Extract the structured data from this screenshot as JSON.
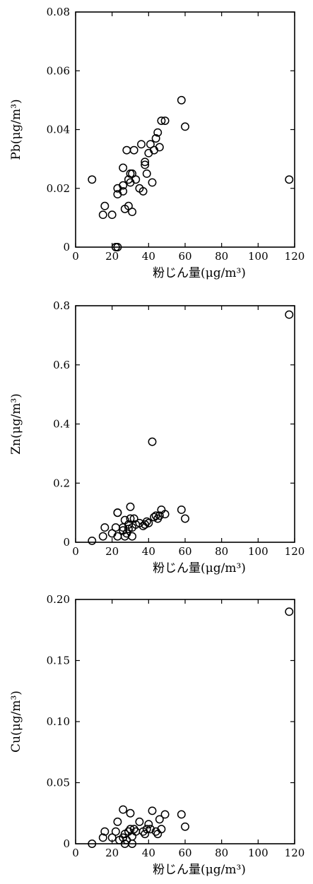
{
  "chart_data": [
    {
      "type": "scatter",
      "xlabel": "粉じん量(μg/m³)",
      "ylabel": "Pb(μg/m³)",
      "xlim": [
        0,
        120
      ],
      "ylim": [
        0,
        0.08
      ],
      "xticks": [
        0,
        20,
        40,
        60,
        80,
        100,
        120
      ],
      "yticks": [
        0,
        0.02,
        0.04,
        0.06,
        0.08
      ],
      "ytick_labels": [
        "0",
        "0.02",
        "0.04",
        "0.06",
        "0.08"
      ],
      "grid": false,
      "points": [
        {
          "x": 9,
          "y": 0.023
        },
        {
          "x": 15,
          "y": 0.011
        },
        {
          "x": 16,
          "y": 0.014
        },
        {
          "x": 20,
          "y": 0.011
        },
        {
          "x": 22,
          "y": 0.0
        },
        {
          "x": 23,
          "y": 0.0
        },
        {
          "x": 23,
          "y": 0.018
        },
        {
          "x": 23,
          "y": 0.02
        },
        {
          "x": 26,
          "y": 0.019
        },
        {
          "x": 26,
          "y": 0.021
        },
        {
          "x": 26,
          "y": 0.027
        },
        {
          "x": 27,
          "y": 0.013
        },
        {
          "x": 28,
          "y": 0.033
        },
        {
          "x": 29,
          "y": 0.014
        },
        {
          "x": 29,
          "y": 0.023
        },
        {
          "x": 30,
          "y": 0.025
        },
        {
          "x": 30,
          "y": 0.022
        },
        {
          "x": 31,
          "y": 0.012
        },
        {
          "x": 31,
          "y": 0.025
        },
        {
          "x": 32,
          "y": 0.033
        },
        {
          "x": 33,
          "y": 0.023
        },
        {
          "x": 35,
          "y": 0.02
        },
        {
          "x": 36,
          "y": 0.035
        },
        {
          "x": 37,
          "y": 0.019
        },
        {
          "x": 38,
          "y": 0.028
        },
        {
          "x": 38,
          "y": 0.029
        },
        {
          "x": 39,
          "y": 0.025
        },
        {
          "x": 40,
          "y": 0.032
        },
        {
          "x": 41,
          "y": 0.035
        },
        {
          "x": 42,
          "y": 0.022
        },
        {
          "x": 43,
          "y": 0.033
        },
        {
          "x": 44,
          "y": 0.037
        },
        {
          "x": 45,
          "y": 0.039
        },
        {
          "x": 46,
          "y": 0.034
        },
        {
          "x": 47,
          "y": 0.043
        },
        {
          "x": 49,
          "y": 0.043
        },
        {
          "x": 58,
          "y": 0.05
        },
        {
          "x": 60,
          "y": 0.041
        },
        {
          "x": 117,
          "y": 0.023
        }
      ]
    },
    {
      "type": "scatter",
      "xlabel": "粉じん量(μg/m³)",
      "ylabel": "Zn(μg/m³)",
      "xlim": [
        0,
        120
      ],
      "ylim": [
        0,
        0.8
      ],
      "xticks": [
        0,
        20,
        40,
        60,
        80,
        100,
        120
      ],
      "yticks": [
        0,
        0.2,
        0.4,
        0.6,
        0.8
      ],
      "ytick_labels": [
        "0",
        "0.2",
        "0.4",
        "0.6",
        "0.8"
      ],
      "grid": false,
      "points": [
        {
          "x": 9,
          "y": 0.005
        },
        {
          "x": 15,
          "y": 0.02
        },
        {
          "x": 16,
          "y": 0.05
        },
        {
          "x": 20,
          "y": 0.03
        },
        {
          "x": 22,
          "y": 0.05
        },
        {
          "x": 23,
          "y": 0.1
        },
        {
          "x": 23,
          "y": 0.1
        },
        {
          "x": 23,
          "y": 0.02
        },
        {
          "x": 26,
          "y": 0.05
        },
        {
          "x": 26,
          "y": 0.04
        },
        {
          "x": 27,
          "y": 0.02
        },
        {
          "x": 27,
          "y": 0.075
        },
        {
          "x": 28,
          "y": 0.03
        },
        {
          "x": 29,
          "y": 0.045
        },
        {
          "x": 29,
          "y": 0.06
        },
        {
          "x": 30,
          "y": 0.12
        },
        {
          "x": 30,
          "y": 0.08
        },
        {
          "x": 31,
          "y": 0.02
        },
        {
          "x": 31,
          "y": 0.05
        },
        {
          "x": 32,
          "y": 0.08
        },
        {
          "x": 33,
          "y": 0.06
        },
        {
          "x": 35,
          "y": 0.065
        },
        {
          "x": 37,
          "y": 0.055
        },
        {
          "x": 38,
          "y": 0.06
        },
        {
          "x": 39,
          "y": 0.07
        },
        {
          "x": 40,
          "y": 0.065
        },
        {
          "x": 42,
          "y": 0.34
        },
        {
          "x": 43,
          "y": 0.085
        },
        {
          "x": 44,
          "y": 0.09
        },
        {
          "x": 45,
          "y": 0.08
        },
        {
          "x": 46,
          "y": 0.09
        },
        {
          "x": 47,
          "y": 0.11
        },
        {
          "x": 49,
          "y": 0.095
        },
        {
          "x": 58,
          "y": 0.11
        },
        {
          "x": 60,
          "y": 0.08
        },
        {
          "x": 117,
          "y": 0.77
        }
      ]
    },
    {
      "type": "scatter",
      "xlabel": "粉じん量(μg/m³)",
      "ylabel": "Cu(μg/m³)",
      "xlim": [
        0,
        120
      ],
      "ylim": [
        0,
        0.2
      ],
      "xticks": [
        0,
        20,
        40,
        60,
        80,
        100,
        120
      ],
      "yticks": [
        0,
        0.05,
        0.1,
        0.15,
        0.2
      ],
      "ytick_labels": [
        "0",
        "0.05",
        "0.10",
        "0.15",
        "0.20"
      ],
      "grid": false,
      "points": [
        {
          "x": 9,
          "y": 0.0
        },
        {
          "x": 15,
          "y": 0.005
        },
        {
          "x": 16,
          "y": 0.01
        },
        {
          "x": 20,
          "y": 0.005
        },
        {
          "x": 22,
          "y": 0.01
        },
        {
          "x": 23,
          "y": 0.018
        },
        {
          "x": 24,
          "y": 0.003
        },
        {
          "x": 26,
          "y": 0.005
        },
        {
          "x": 26,
          "y": 0.028
        },
        {
          "x": 27,
          "y": 0.0
        },
        {
          "x": 27,
          "y": 0.008
        },
        {
          "x": 28,
          "y": 0.003
        },
        {
          "x": 29,
          "y": 0.01
        },
        {
          "x": 30,
          "y": 0.012
        },
        {
          "x": 30,
          "y": 0.025
        },
        {
          "x": 31,
          "y": 0.0
        },
        {
          "x": 31,
          "y": 0.006
        },
        {
          "x": 32,
          "y": 0.012
        },
        {
          "x": 33,
          "y": 0.01
        },
        {
          "x": 35,
          "y": 0.018
        },
        {
          "x": 37,
          "y": 0.01
        },
        {
          "x": 38,
          "y": 0.008
        },
        {
          "x": 39,
          "y": 0.012
        },
        {
          "x": 40,
          "y": 0.016
        },
        {
          "x": 41,
          "y": 0.012
        },
        {
          "x": 42,
          "y": 0.027
        },
        {
          "x": 44,
          "y": 0.01
        },
        {
          "x": 45,
          "y": 0.008
        },
        {
          "x": 46,
          "y": 0.02
        },
        {
          "x": 47,
          "y": 0.012
        },
        {
          "x": 49,
          "y": 0.024
        },
        {
          "x": 58,
          "y": 0.024
        },
        {
          "x": 60,
          "y": 0.014
        },
        {
          "x": 117,
          "y": 0.19
        }
      ]
    }
  ]
}
